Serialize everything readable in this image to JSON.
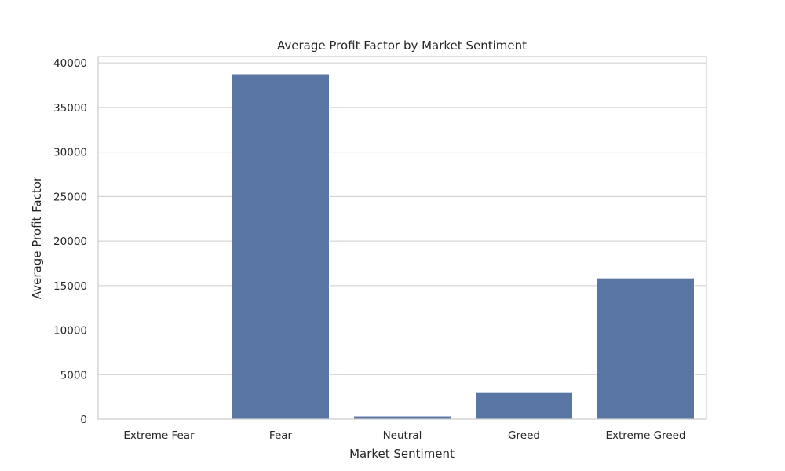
{
  "chart_data": {
    "type": "bar",
    "title": "Average Profit Factor by Market Sentiment",
    "xlabel": "Market Sentiment",
    "ylabel": "Average Profit Factor",
    "categories": [
      "Extreme Fear",
      "Fear",
      "Neutral",
      "Greed",
      "Extreme Greed"
    ],
    "values": [
      40,
      38780,
      350,
      2980,
      15850
    ],
    "ylim": [
      0,
      40720
    ],
    "yticks": [
      0,
      5000,
      10000,
      15000,
      20000,
      25000,
      30000,
      35000,
      40000
    ],
    "grid": true,
    "bar_color": "#5875a4"
  }
}
